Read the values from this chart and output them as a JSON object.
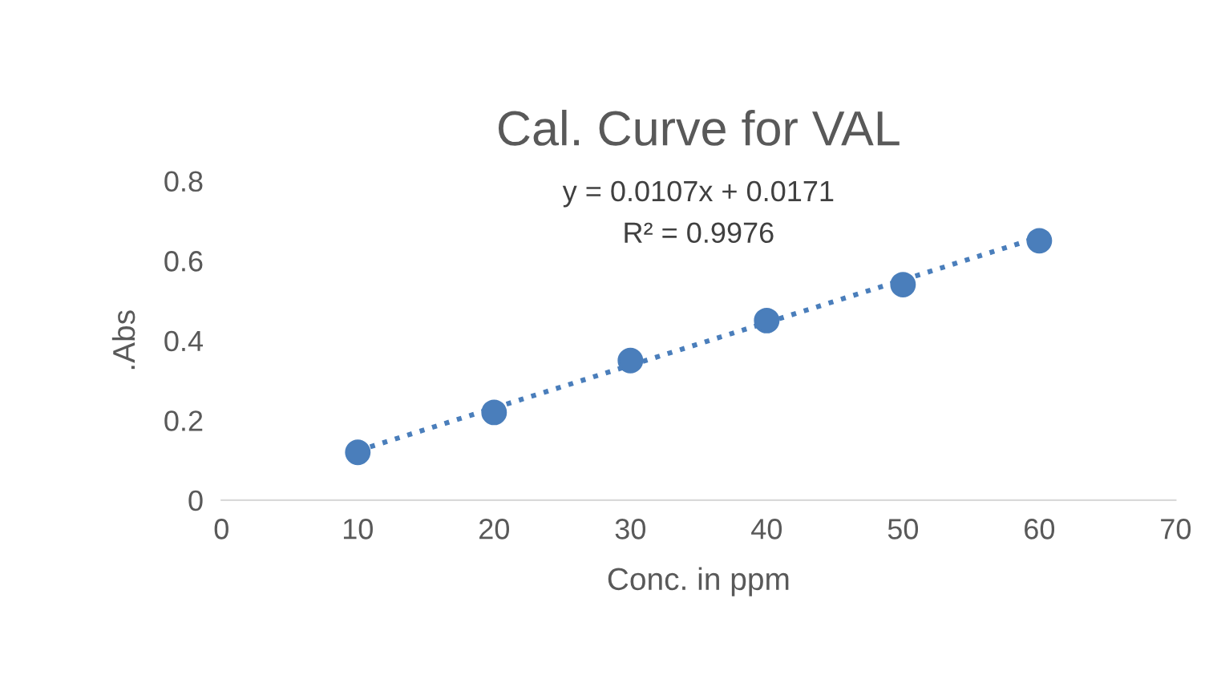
{
  "chart_data": {
    "type": "scatter",
    "title": "Cal. Curve for VAL",
    "xlabel": "Conc. in ppm",
    "ylabel": ".Abs",
    "annotations": [
      "y = 0.0107x + 0.0171",
      "R² = 0.9976"
    ],
    "series": [
      {
        "color": "#4a7ebb",
        "marker": "circle",
        "x": [
          10,
          20,
          30,
          40,
          50,
          60
        ],
        "values": [
          0.12,
          0.22,
          0.35,
          0.45,
          0.54,
          0.65
        ]
      },
      {
        "type": "line",
        "color": "#4a7ebb",
        "line_style": "dotted",
        "marker": "none",
        "x": [
          10,
          60
        ],
        "values": [
          0.124,
          0.659
        ]
      }
    ],
    "xlim": [
      0,
      70
    ],
    "xticks": [
      0,
      10,
      20,
      30,
      40,
      50,
      60,
      70
    ],
    "ylim": [
      0,
      0.8
    ],
    "yticks": [
      0,
      0.2,
      0.4,
      0.6,
      0.8
    ],
    "grid": false,
    "legend": false
  }
}
